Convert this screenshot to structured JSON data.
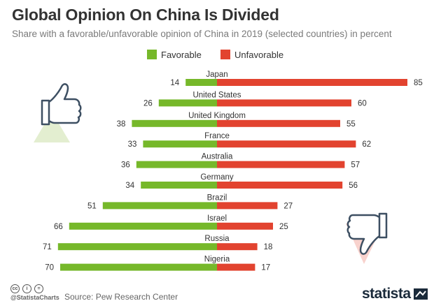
{
  "header": {
    "title": "Global Opinion On China Is Divided",
    "subtitle": "Share with a favorable/unfavorable opinion of China in 2019 (selected countries) in percent"
  },
  "colors": {
    "favorable": "#76b82a",
    "unfavorable": "#e2432f",
    "divider": "#d9d9d9"
  },
  "chart_data": {
    "type": "bar",
    "orientation": "horizontal-diverging",
    "title": "Global Opinion On China Is Divided",
    "categories": [
      "Japan",
      "United States",
      "United Kingdom",
      "France",
      "Australia",
      "Germany",
      "Brazil",
      "Israel",
      "Russia",
      "Nigeria"
    ],
    "series": [
      {
        "name": "Favorable",
        "values": [
          14,
          26,
          38,
          33,
          36,
          34,
          51,
          66,
          71,
          70
        ]
      },
      {
        "name": "Unfavorable",
        "values": [
          85,
          60,
          55,
          62,
          57,
          56,
          27,
          25,
          18,
          17
        ]
      }
    ],
    "xlabel": "",
    "ylabel": "",
    "xlim": [
      0,
      100
    ],
    "legend": "top-center",
    "grid": false
  },
  "icons": {
    "thumbs_up": "thumbs-up-icon",
    "thumbs_down": "thumbs-down-icon"
  },
  "footer": {
    "license_icons": [
      "cc-icon",
      "by-icon",
      "nd-icon"
    ],
    "license_glyphs": [
      "cc",
      "i",
      "="
    ],
    "handle": "@StatistaCharts",
    "source": "Source: Pew Research Center",
    "brand": "statista"
  }
}
